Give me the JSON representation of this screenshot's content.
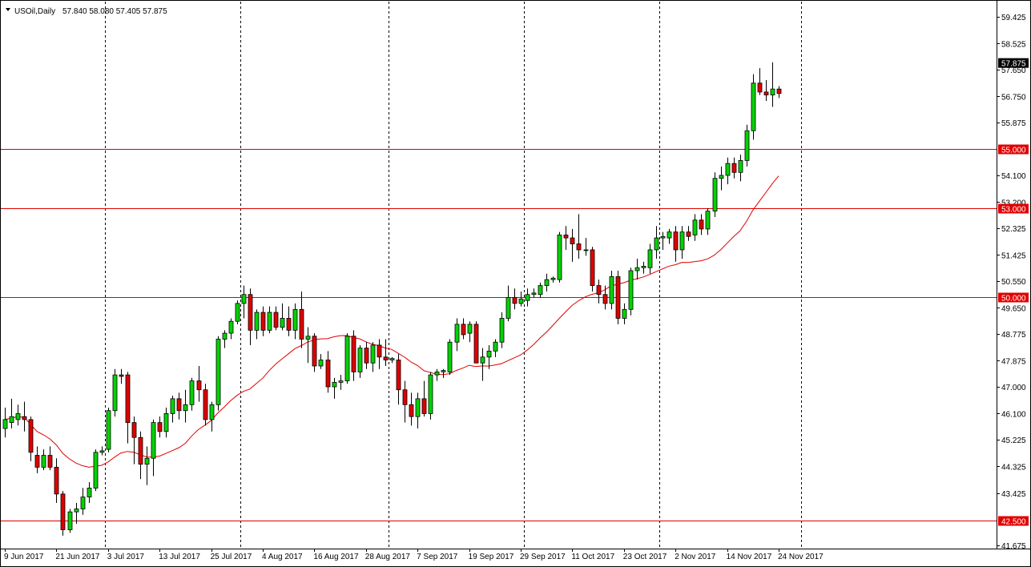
{
  "header": {
    "symbol_label": "USOil,Daily",
    "ohlc_text": "57.840 58.080 57.405 57.875"
  },
  "icons": {
    "header_menu": "triangle-down-icon"
  },
  "colors": {
    "background": "#ffffff",
    "bull_body": "#00d400",
    "bear_body": "#e00000",
    "wick": "#000000",
    "moving_average": "#e00000",
    "horizontal_level": "#e00000",
    "period_separator": "#000000",
    "last_price_tag": "#000000"
  },
  "chart_data": {
    "type": "candlestick",
    "symbol": "USOil",
    "timeframe": "Daily",
    "grid": false,
    "y_axis": {
      "side": "right",
      "ylim": [
        41.675,
        59.425
      ],
      "ticks": [
        "59.425",
        "58.525",
        "57.650",
        "56.750",
        "55.875",
        "54.100",
        "53.200",
        "52.325",
        "51.425",
        "50.550",
        "49.650",
        "48.775",
        "47.875",
        "47.000",
        "46.100",
        "45.225",
        "44.325",
        "43.425",
        "41.675"
      ]
    },
    "x_axis": {
      "labels": [
        {
          "label": "9 Jun 2017",
          "bar": 0
        },
        {
          "label": "21 Jun 2017",
          "bar": 8
        },
        {
          "label": "3 Jul 2017",
          "bar": 16
        },
        {
          "label": "13 Jul 2017",
          "bar": 24
        },
        {
          "label": "25 Jul 2017",
          "bar": 32
        },
        {
          "label": "4 Aug 2017",
          "bar": 40
        },
        {
          "label": "16 Aug 2017",
          "bar": 48
        },
        {
          "label": "28 Aug 2017",
          "bar": 56
        },
        {
          "label": "7 Sep 2017",
          "bar": 64
        },
        {
          "label": "19 Sep 2017",
          "bar": 72
        },
        {
          "label": "29 Sep 2017",
          "bar": 80
        },
        {
          "label": "11 Oct 2017",
          "bar": 88
        },
        {
          "label": "23 Oct 2017",
          "bar": 96
        },
        {
          "label": "2 Nov 2017",
          "bar": 104
        },
        {
          "label": "14 Nov 2017",
          "bar": 112
        },
        {
          "label": "24 Nov 2017",
          "bar": 120
        }
      ]
    },
    "period_separators_at_bar": [
      16,
      37,
      60,
      81,
      102,
      124
    ],
    "levels": [
      {
        "value": 55.0,
        "label": "55.000"
      },
      {
        "value": 53.0,
        "label": "53.000"
      },
      {
        "value": 50.0,
        "label": "50.000"
      },
      {
        "value": 42.5,
        "label": "42.500"
      }
    ],
    "last_price": {
      "value": 57.875,
      "label": "57.875"
    },
    "candles": [
      {
        "o": 45.6,
        "h": 46.3,
        "l": 45.3,
        "c": 45.9
      },
      {
        "o": 45.8,
        "h": 46.6,
        "l": 45.6,
        "c": 46.0
      },
      {
        "o": 45.9,
        "h": 46.4,
        "l": 45.7,
        "c": 46.1
      },
      {
        "o": 46.0,
        "h": 46.5,
        "l": 45.5,
        "c": 45.9
      },
      {
        "o": 45.9,
        "h": 46.0,
        "l": 44.5,
        "c": 44.8
      },
      {
        "o": 44.7,
        "h": 45.0,
        "l": 44.1,
        "c": 44.3
      },
      {
        "o": 44.3,
        "h": 44.9,
        "l": 44.2,
        "c": 44.7
      },
      {
        "o": 44.7,
        "h": 45.0,
        "l": 44.2,
        "c": 44.3
      },
      {
        "o": 44.3,
        "h": 44.6,
        "l": 43.1,
        "c": 43.4
      },
      {
        "o": 43.4,
        "h": 43.5,
        "l": 42.0,
        "c": 42.2
      },
      {
        "o": 42.2,
        "h": 42.9,
        "l": 42.1,
        "c": 42.8
      },
      {
        "o": 42.8,
        "h": 43.1,
        "l": 42.4,
        "c": 42.9
      },
      {
        "o": 42.9,
        "h": 43.6,
        "l": 42.7,
        "c": 43.3
      },
      {
        "o": 43.3,
        "h": 43.8,
        "l": 43.1,
        "c": 43.6
      },
      {
        "o": 43.6,
        "h": 44.9,
        "l": 43.5,
        "c": 44.8
      },
      {
        "o": 44.8,
        "h": 45.0,
        "l": 44.7,
        "c": 44.85
      },
      {
        "o": 44.9,
        "h": 46.3,
        "l": 44.8,
        "c": 46.2
      },
      {
        "o": 46.2,
        "h": 47.6,
        "l": 46.0,
        "c": 47.4
      },
      {
        "o": 47.4,
        "h": 47.6,
        "l": 47.1,
        "c": 47.35
      },
      {
        "o": 47.4,
        "h": 47.5,
        "l": 45.1,
        "c": 45.8
      },
      {
        "o": 45.8,
        "h": 46.0,
        "l": 44.4,
        "c": 45.3
      },
      {
        "o": 45.3,
        "h": 45.5,
        "l": 43.9,
        "c": 44.4
      },
      {
        "o": 44.4,
        "h": 45.0,
        "l": 43.7,
        "c": 44.6
      },
      {
        "o": 44.6,
        "h": 45.9,
        "l": 44.0,
        "c": 45.8
      },
      {
        "o": 45.8,
        "h": 46.0,
        "l": 45.3,
        "c": 45.5
      },
      {
        "o": 45.5,
        "h": 46.3,
        "l": 45.3,
        "c": 46.1
      },
      {
        "o": 46.1,
        "h": 46.7,
        "l": 45.8,
        "c": 46.6
      },
      {
        "o": 46.6,
        "h": 46.8,
        "l": 45.9,
        "c": 46.2
      },
      {
        "o": 46.2,
        "h": 46.9,
        "l": 45.8,
        "c": 46.4
      },
      {
        "o": 46.4,
        "h": 47.3,
        "l": 46.2,
        "c": 47.2
      },
      {
        "o": 47.2,
        "h": 47.7,
        "l": 46.5,
        "c": 46.9
      },
      {
        "o": 46.9,
        "h": 47.1,
        "l": 45.7,
        "c": 45.9
      },
      {
        "o": 45.9,
        "h": 46.5,
        "l": 45.5,
        "c": 46.4
      },
      {
        "o": 46.4,
        "h": 48.7,
        "l": 46.2,
        "c": 48.6
      },
      {
        "o": 48.6,
        "h": 48.9,
        "l": 48.3,
        "c": 48.8
      },
      {
        "o": 48.8,
        "h": 49.3,
        "l": 48.6,
        "c": 49.2
      },
      {
        "o": 49.2,
        "h": 49.9,
        "l": 49.1,
        "c": 49.8
      },
      {
        "o": 49.8,
        "h": 50.4,
        "l": 49.3,
        "c": 50.1
      },
      {
        "o": 50.1,
        "h": 50.3,
        "l": 48.4,
        "c": 48.9
      },
      {
        "o": 48.9,
        "h": 49.6,
        "l": 48.6,
        "c": 49.5
      },
      {
        "o": 49.5,
        "h": 49.7,
        "l": 48.7,
        "c": 48.9
      },
      {
        "o": 48.9,
        "h": 49.7,
        "l": 48.8,
        "c": 49.5
      },
      {
        "o": 49.5,
        "h": 49.7,
        "l": 48.9,
        "c": 49.0
      },
      {
        "o": 49.0,
        "h": 49.8,
        "l": 48.9,
        "c": 49.3
      },
      {
        "o": 49.3,
        "h": 49.7,
        "l": 48.7,
        "c": 48.9
      },
      {
        "o": 48.9,
        "h": 49.8,
        "l": 48.6,
        "c": 49.6
      },
      {
        "o": 49.6,
        "h": 50.2,
        "l": 48.3,
        "c": 48.6
      },
      {
        "o": 48.6,
        "h": 49.0,
        "l": 47.8,
        "c": 48.7
      },
      {
        "o": 48.7,
        "h": 48.8,
        "l": 47.5,
        "c": 47.7
      },
      {
        "o": 47.7,
        "h": 48.1,
        "l": 47.6,
        "c": 47.9
      },
      {
        "o": 47.9,
        "h": 48.2,
        "l": 46.8,
        "c": 47.0
      },
      {
        "o": 47.0,
        "h": 47.3,
        "l": 46.6,
        "c": 47.15
      },
      {
        "o": 47.15,
        "h": 47.4,
        "l": 46.9,
        "c": 47.2
      },
      {
        "o": 47.2,
        "h": 48.8,
        "l": 47.1,
        "c": 48.7
      },
      {
        "o": 48.7,
        "h": 48.9,
        "l": 47.2,
        "c": 47.5
      },
      {
        "o": 47.5,
        "h": 48.4,
        "l": 47.3,
        "c": 48.3
      },
      {
        "o": 48.3,
        "h": 48.5,
        "l": 47.6,
        "c": 47.8
      },
      {
        "o": 47.8,
        "h": 48.5,
        "l": 47.5,
        "c": 48.4
      },
      {
        "o": 48.4,
        "h": 48.6,
        "l": 47.6,
        "c": 48.0
      },
      {
        "o": 48.0,
        "h": 48.6,
        "l": 47.7,
        "c": 47.9
      },
      {
        "o": 47.9,
        "h": 48.0,
        "l": 47.8,
        "c": 47.95
      },
      {
        "o": 47.9,
        "h": 48.1,
        "l": 46.4,
        "c": 46.9
      },
      {
        "o": 46.9,
        "h": 47.2,
        "l": 45.8,
        "c": 46.4
      },
      {
        "o": 46.4,
        "h": 46.8,
        "l": 45.7,
        "c": 46.0
      },
      {
        "o": 46.0,
        "h": 46.8,
        "l": 45.6,
        "c": 46.6
      },
      {
        "o": 46.6,
        "h": 47.2,
        "l": 46.0,
        "c": 46.1
      },
      {
        "o": 46.1,
        "h": 47.5,
        "l": 45.9,
        "c": 47.4
      },
      {
        "o": 47.4,
        "h": 47.6,
        "l": 47.2,
        "c": 47.5
      },
      {
        "o": 47.5,
        "h": 47.6,
        "l": 47.3,
        "c": 47.55
      },
      {
        "o": 47.5,
        "h": 48.6,
        "l": 47.4,
        "c": 48.5
      },
      {
        "o": 48.5,
        "h": 49.3,
        "l": 48.2,
        "c": 49.1
      },
      {
        "o": 49.1,
        "h": 49.3,
        "l": 48.6,
        "c": 48.75
      },
      {
        "o": 48.8,
        "h": 49.2,
        "l": 48.5,
        "c": 49.1
      },
      {
        "o": 49.1,
        "h": 49.2,
        "l": 47.8,
        "c": 47.8
      },
      {
        "o": 47.8,
        "h": 48.3,
        "l": 47.2,
        "c": 48.0
      },
      {
        "o": 48.0,
        "h": 48.4,
        "l": 47.6,
        "c": 48.2
      },
      {
        "o": 48.2,
        "h": 48.6,
        "l": 48.0,
        "c": 48.5
      },
      {
        "o": 48.5,
        "h": 49.5,
        "l": 48.3,
        "c": 49.3
      },
      {
        "o": 49.3,
        "h": 50.4,
        "l": 49.2,
        "c": 50.0
      },
      {
        "o": 50.0,
        "h": 50.3,
        "l": 49.6,
        "c": 49.8
      },
      {
        "o": 49.8,
        "h": 50.2,
        "l": 49.7,
        "c": 49.95
      },
      {
        "o": 49.9,
        "h": 50.3,
        "l": 49.7,
        "c": 50.1
      },
      {
        "o": 50.1,
        "h": 50.3,
        "l": 50.0,
        "c": 50.15
      },
      {
        "o": 50.1,
        "h": 50.5,
        "l": 50.0,
        "c": 50.4
      },
      {
        "o": 50.4,
        "h": 50.8,
        "l": 50.2,
        "c": 50.6
      },
      {
        "o": 50.6,
        "h": 50.7,
        "l": 50.5,
        "c": 50.65
      },
      {
        "o": 50.6,
        "h": 52.2,
        "l": 50.5,
        "c": 52.1
      },
      {
        "o": 52.1,
        "h": 52.4,
        "l": 51.6,
        "c": 52.0
      },
      {
        "o": 52.0,
        "h": 52.3,
        "l": 51.2,
        "c": 51.8
      },
      {
        "o": 51.8,
        "h": 52.8,
        "l": 51.3,
        "c": 51.6
      },
      {
        "o": 51.6,
        "h": 52.0,
        "l": 51.4,
        "c": 51.6
      },
      {
        "o": 51.6,
        "h": 51.7,
        "l": 50.2,
        "c": 50.4
      },
      {
        "o": 50.4,
        "h": 50.6,
        "l": 49.8,
        "c": 50.1
      },
      {
        "o": 50.1,
        "h": 50.4,
        "l": 49.6,
        "c": 49.8
      },
      {
        "o": 49.8,
        "h": 50.9,
        "l": 49.6,
        "c": 50.7
      },
      {
        "o": 50.7,
        "h": 50.9,
        "l": 49.1,
        "c": 49.3
      },
      {
        "o": 49.3,
        "h": 49.8,
        "l": 49.1,
        "c": 49.6
      },
      {
        "o": 49.6,
        "h": 51.0,
        "l": 49.4,
        "c": 50.9
      },
      {
        "o": 50.9,
        "h": 51.3,
        "l": 50.6,
        "c": 51.0
      },
      {
        "o": 51.0,
        "h": 51.2,
        "l": 50.8,
        "c": 51.05
      },
      {
        "o": 51.0,
        "h": 51.8,
        "l": 50.8,
        "c": 51.6
      },
      {
        "o": 51.6,
        "h": 52.4,
        "l": 51.3,
        "c": 52.0
      },
      {
        "o": 52.0,
        "h": 52.2,
        "l": 51.6,
        "c": 52.05
      },
      {
        "o": 52.0,
        "h": 52.3,
        "l": 51.8,
        "c": 52.2
      },
      {
        "o": 52.2,
        "h": 52.4,
        "l": 51.2,
        "c": 51.6
      },
      {
        "o": 51.6,
        "h": 52.4,
        "l": 51.3,
        "c": 52.2
      },
      {
        "o": 52.2,
        "h": 52.4,
        "l": 51.9,
        "c": 52.05
      },
      {
        "o": 52.1,
        "h": 52.8,
        "l": 51.9,
        "c": 52.6
      },
      {
        "o": 52.6,
        "h": 52.8,
        "l": 52.1,
        "c": 52.3
      },
      {
        "o": 52.3,
        "h": 53.0,
        "l": 52.1,
        "c": 52.9
      },
      {
        "o": 52.9,
        "h": 54.2,
        "l": 52.7,
        "c": 54.0
      },
      {
        "o": 54.0,
        "h": 54.4,
        "l": 53.6,
        "c": 54.1
      },
      {
        "o": 54.1,
        "h": 54.7,
        "l": 53.8,
        "c": 54.5
      },
      {
        "o": 54.5,
        "h": 54.7,
        "l": 54.0,
        "c": 54.2
      },
      {
        "o": 54.2,
        "h": 54.8,
        "l": 53.9,
        "c": 54.6
      },
      {
        "o": 54.6,
        "h": 55.8,
        "l": 54.4,
        "c": 55.6
      },
      {
        "o": 55.6,
        "h": 57.5,
        "l": 55.3,
        "c": 57.2
      },
      {
        "o": 57.2,
        "h": 57.7,
        "l": 56.8,
        "c": 56.9
      },
      {
        "o": 56.9,
        "h": 57.3,
        "l": 56.6,
        "c": 56.8
      },
      {
        "o": 56.8,
        "h": 57.9,
        "l": 56.4,
        "c": 57.0
      },
      {
        "o": 57.0,
        "h": 57.1,
        "l": 56.7,
        "c": 56.85
      }
    ]
  }
}
